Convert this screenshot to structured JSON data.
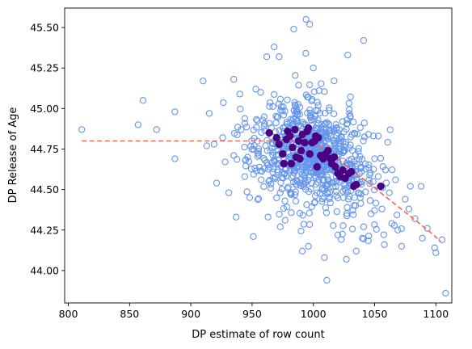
{
  "chart_data": {
    "type": "scatter",
    "title": "",
    "xlabel": "DP estimate of row count",
    "ylabel": "DP Release of Age",
    "xlim": [
      797,
      1113
    ],
    "ylim": [
      43.8,
      45.62
    ],
    "xticks": [
      800,
      850,
      900,
      950,
      1000,
      1050,
      1100
    ],
    "yticks": [
      44.0,
      44.25,
      44.5,
      44.75,
      45.0,
      45.25,
      45.5
    ],
    "xtick_labels": [
      "800",
      "850",
      "900",
      "950",
      "1000",
      "1050",
      "1100"
    ],
    "ytick_labels": [
      "44.00",
      "44.25",
      "44.50",
      "44.75",
      "45.00",
      "45.25",
      "45.50"
    ],
    "grid": false,
    "legend": "none",
    "colors": {
      "hollow_points": "#6495ed",
      "solid_points": "#4b0082",
      "trend_line": "#ff6347"
    },
    "trend_line": {
      "style": "dashed",
      "x": [
        811,
        975,
        985,
        995,
        1005,
        1015,
        1025,
        1035,
        1045,
        1055,
        1065,
        1075,
        1085,
        1095,
        1104
      ],
      "y": [
        44.8,
        44.8,
        44.8,
        44.795,
        44.77,
        44.72,
        44.66,
        44.6,
        44.54,
        44.48,
        44.42,
        44.36,
        44.3,
        44.24,
        44.18
      ]
    },
    "hollow_points_outliers": [
      [
        811,
        44.87
      ],
      [
        857,
        44.9
      ],
      [
        861,
        45.05
      ],
      [
        872,
        44.87
      ],
      [
        887,
        44.98
      ],
      [
        887,
        44.69
      ],
      [
        910,
        45.17
      ],
      [
        913,
        44.77
      ],
      [
        915,
        44.97
      ],
      [
        919,
        44.78
      ],
      [
        921,
        44.54
      ],
      [
        926,
        44.82
      ],
      [
        928,
        44.67
      ],
      [
        931,
        44.48
      ],
      [
        935,
        45.18
      ],
      [
        937,
        44.33
      ],
      [
        941,
        44.87
      ],
      [
        944,
        44.58
      ],
      [
        948,
        44.45
      ],
      [
        951,
        44.21
      ],
      [
        953,
        45.12
      ],
      [
        957,
        45.1
      ],
      [
        962,
        45.32
      ],
      [
        963,
        44.33
      ],
      [
        968,
        45.38
      ],
      [
        972,
        45.32
      ],
      [
        973,
        44.27
      ],
      [
        977,
        44.31
      ],
      [
        984,
        45.49
      ],
      [
        991,
        44.12
      ],
      [
        994,
        45.55
      ],
      [
        997,
        45.52
      ],
      [
        996,
        44.15
      ],
      [
        1000,
        45.25
      ],
      [
        1009,
        44.08
      ],
      [
        1011,
        43.94
      ],
      [
        1020,
        44.22
      ],
      [
        1027,
        44.07
      ],
      [
        1028,
        45.33
      ],
      [
        1035,
        44.12
      ],
      [
        1040,
        44.2
      ],
      [
        1041,
        45.42
      ],
      [
        1047,
        44.35
      ],
      [
        1053,
        44.83
      ],
      [
        1056,
        44.38
      ],
      [
        1058,
        44.16
      ],
      [
        1062,
        44.48
      ],
      [
        1064,
        44.29
      ],
      [
        1067,
        44.56
      ],
      [
        1069,
        44.25
      ],
      [
        1072,
        44.15
      ],
      [
        1075,
        44.44
      ],
      [
        1078,
        44.38
      ],
      [
        1083,
        44.32
      ],
      [
        1088,
        44.52
      ],
      [
        1089,
        44.2
      ],
      [
        1093,
        44.26
      ],
      [
        1099,
        44.14
      ],
      [
        1100,
        44.11
      ],
      [
        1105,
        44.19
      ],
      [
        1108,
        43.86
      ],
      [
        1041,
        44.27
      ],
      [
        1046,
        44.59
      ],
      [
        1050,
        44.69
      ],
      [
        960,
        44.63
      ],
      [
        935,
        44.71
      ]
    ],
    "hollow_cloud": {
      "x_center": 1000,
      "x_spread": 24,
      "y_center": 44.75,
      "y_spread": 0.16,
      "count": 820,
      "seed": 17
    },
    "solid_points": [
      [
        964,
        44.85
      ],
      [
        970,
        44.82
      ],
      [
        972,
        44.78
      ],
      [
        975,
        44.72
      ],
      [
        976,
        44.66
      ],
      [
        978,
        44.81
      ],
      [
        981,
        44.83
      ],
      [
        983,
        44.76
      ],
      [
        985,
        44.87
      ],
      [
        986,
        44.7
      ],
      [
        988,
        44.8
      ],
      [
        990,
        44.74
      ],
      [
        991,
        44.84
      ],
      [
        993,
        44.79
      ],
      [
        995,
        44.86
      ],
      [
        996,
        44.88
      ],
      [
        997,
        44.72
      ],
      [
        999,
        44.79
      ],
      [
        1001,
        44.8
      ],
      [
        1002,
        44.83
      ],
      [
        1004,
        44.82
      ],
      [
        1006,
        44.71
      ],
      [
        1008,
        44.69
      ],
      [
        1010,
        44.72
      ],
      [
        1012,
        44.74
      ],
      [
        1014,
        44.69
      ],
      [
        1015,
        44.66
      ],
      [
        1017,
        44.7
      ],
      [
        1018,
        44.64
      ],
      [
        1020,
        44.6
      ],
      [
        1022,
        44.58
      ],
      [
        1024,
        44.62
      ],
      [
        1026,
        44.57
      ],
      [
        1029,
        44.6
      ],
      [
        1031,
        44.61
      ],
      [
        1033,
        44.52
      ],
      [
        1035,
        44.53
      ],
      [
        1055,
        44.52
      ],
      [
        982,
        44.66
      ],
      [
        1003,
        44.64
      ],
      [
        979,
        44.86
      ],
      [
        989,
        44.69
      ]
    ]
  }
}
